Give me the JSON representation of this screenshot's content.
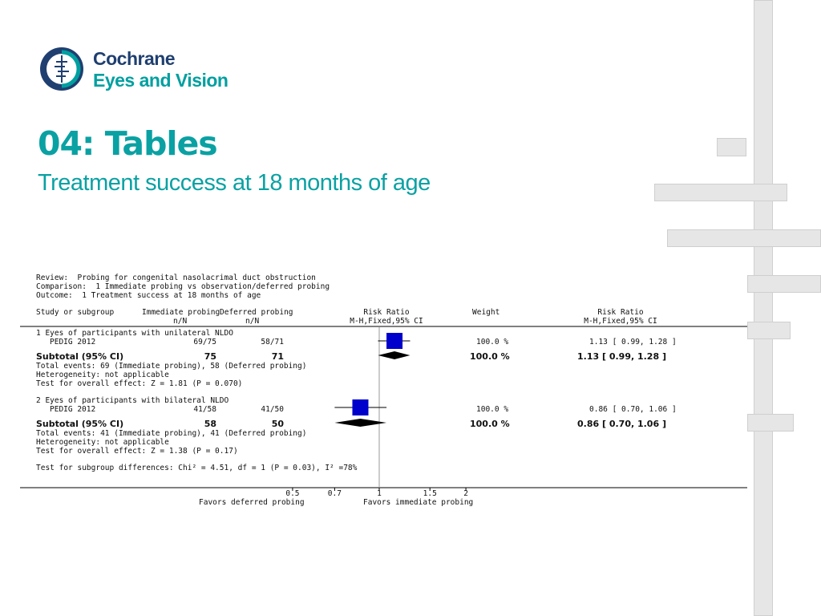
{
  "logo": {
    "line1": "Cochrane",
    "line2": "Eyes and Vision"
  },
  "slide": {
    "title": "04: Tables",
    "subtitle": "Treatment success at 18 months of age"
  },
  "header": {
    "review": "Review:  Probing for congenital nasolacrimal duct obstruction",
    "comparison": "Comparison:  1 Immediate probing vs observation/deferred probing",
    "outcome": "Outcome:  1 Treatment success at 18 months of age"
  },
  "columns": {
    "study": "Study or subgroup",
    "exp": "Immediate probing",
    "exp_sub": "n/N",
    "ctl": "Deferred probing",
    "ctl_sub": "n/N",
    "rr_plot": "Risk Ratio",
    "rr_plot_sub": "M-H,Fixed,95% CI",
    "weight": "Weight",
    "rr_text": "Risk Ratio",
    "rr_text_sub": "M-H,Fixed,95% CI"
  },
  "groups": [
    {
      "name": "1 Eyes of participants with unilateral NLDO",
      "study": {
        "name": "PEDIG 2012",
        "exp": "69/75",
        "ctl": "58/71",
        "weight": "100.0 %",
        "rr_text": "1.13 [ 0.99, 1.28 ]"
      },
      "subtotal": {
        "label": "Subtotal (95% CI)",
        "exp": "75",
        "ctl": "71",
        "weight": "100.0 %",
        "rr_text": "1.13 [ 0.99, 1.28 ]"
      },
      "events": "Total events: 69 (Immediate probing), 58 (Deferred probing)",
      "heterogeneity": "Heterogeneity: not applicable",
      "overall": "Test for overall effect: Z = 1.81 (P = 0.070)"
    },
    {
      "name": "2 Eyes of participants with bilateral NLDO",
      "study": {
        "name": "PEDIG 2012",
        "exp": "41/58",
        "ctl": "41/50",
        "weight": "100.0 %",
        "rr_text": "0.86 [ 0.70, 1.06 ]"
      },
      "subtotal": {
        "label": "Subtotal (95% CI)",
        "exp": "58",
        "ctl": "50",
        "weight": "100.0 %",
        "rr_text": "0.86 [ 0.70, 1.06 ]"
      },
      "events": "Total events: 41 (Immediate probing), 41 (Deferred probing)",
      "heterogeneity": "Heterogeneity: not applicable",
      "overall": "Test for overall effect: Z = 1.38 (P = 0.17)"
    }
  ],
  "subgroup_test": "Test for subgroup differences: Chi² = 4.51, df = 1 (P = 0.03), I² =78%",
  "favors_left": "Favors deferred probing",
  "favors_right": "Favors immediate probing",
  "colors": {
    "teal": "#0aa1a3",
    "navy": "#1f3f70",
    "square": "#0000cc"
  },
  "chart_data": {
    "type": "forest",
    "x_scale": "log",
    "xlim": [
      0.5,
      2
    ],
    "ticks": [
      0.5,
      0.7,
      1,
      1.5,
      2
    ],
    "tick_labels": [
      "0.5",
      "0.7",
      "1",
      "1.5",
      "2"
    ],
    "xlabel_left": "Favors deferred probing",
    "xlabel_right": "Favors immediate probing",
    "studies": [
      {
        "group": "1 Eyes of participants with unilateral NLDO",
        "name": "PEDIG 2012",
        "rr": 1.13,
        "lo": 0.99,
        "hi": 1.28,
        "weight": 100.0
      },
      {
        "group": "2 Eyes of participants with bilateral NLDO",
        "name": "PEDIG 2012",
        "rr": 0.86,
        "lo": 0.7,
        "hi": 1.06,
        "weight": 100.0
      }
    ],
    "subtotals": [
      {
        "group": "1 Eyes of participants with unilateral NLDO",
        "rr": 1.13,
        "lo": 0.99,
        "hi": 1.28
      },
      {
        "group": "2 Eyes of participants with bilateral NLDO",
        "rr": 0.86,
        "lo": 0.7,
        "hi": 1.06
      }
    ]
  }
}
